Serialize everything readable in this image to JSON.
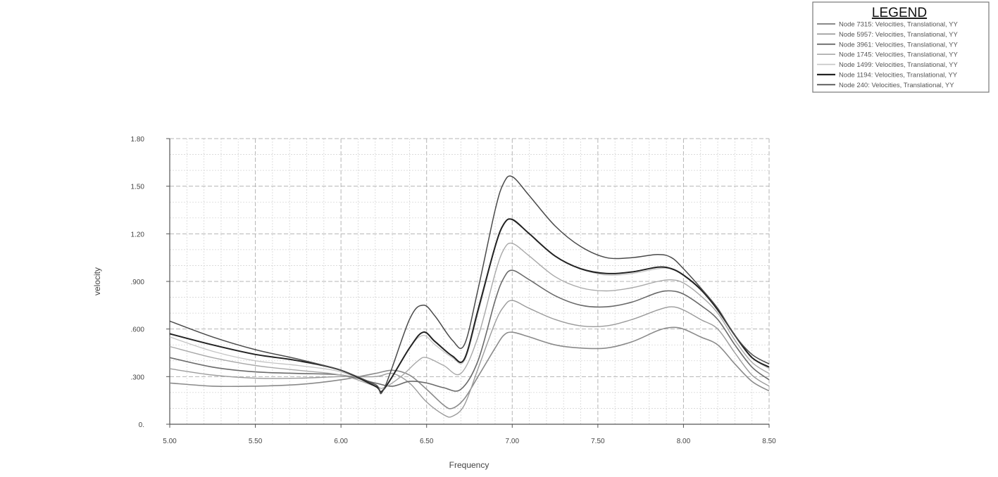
{
  "chart_data": {
    "type": "line",
    "xlabel": "Frequency",
    "ylabel": "velocity",
    "xlim": [
      5.0,
      8.5
    ],
    "ylim": [
      0,
      1.8
    ],
    "x_ticks": [
      5.0,
      5.5,
      6.0,
      6.5,
      7.0,
      7.5,
      8.0,
      8.5
    ],
    "x_tick_labels": [
      "5.00",
      "5.50",
      "6.00",
      "6.50",
      "7.00",
      "7.50",
      "8.00",
      "8.50"
    ],
    "y_ticks": [
      0,
      0.3,
      0.6,
      0.9,
      1.2,
      1.5,
      1.8
    ],
    "y_tick_labels": [
      "0.",
      ".300",
      ".600",
      ".900",
      "1.20",
      "1.50",
      "1.80"
    ],
    "grid": true,
    "legend": {
      "title": "LEGEND",
      "position": "top-right"
    },
    "series": [
      {
        "name": "Node 7315: Velocities, Translational, YY",
        "color": "#8a8a8a",
        "width": 1.6,
        "points": [
          [
            5.0,
            0.26
          ],
          [
            5.25,
            0.24
          ],
          [
            5.5,
            0.24
          ],
          [
            5.75,
            0.25
          ],
          [
            6.0,
            0.28
          ],
          [
            6.2,
            0.32
          ],
          [
            6.3,
            0.34
          ],
          [
            6.4,
            0.31
          ],
          [
            6.5,
            0.22
          ],
          [
            6.6,
            0.12
          ],
          [
            6.65,
            0.1
          ],
          [
            6.72,
            0.16
          ],
          [
            6.8,
            0.3
          ],
          [
            6.9,
            0.48
          ],
          [
            6.95,
            0.56
          ],
          [
            7.0,
            0.58
          ],
          [
            7.1,
            0.55
          ],
          [
            7.25,
            0.5
          ],
          [
            7.4,
            0.48
          ],
          [
            7.55,
            0.48
          ],
          [
            7.7,
            0.52
          ],
          [
            7.85,
            0.59
          ],
          [
            7.93,
            0.61
          ],
          [
            8.0,
            0.6
          ],
          [
            8.1,
            0.55
          ],
          [
            8.2,
            0.5
          ],
          [
            8.3,
            0.38
          ],
          [
            8.4,
            0.27
          ],
          [
            8.5,
            0.21
          ]
        ]
      },
      {
        "name": "Node 5957: Velocities, Translational, YY",
        "color": "#9a9a9a",
        "width": 1.4,
        "points": [
          [
            5.0,
            0.35
          ],
          [
            5.25,
            0.31
          ],
          [
            5.5,
            0.29
          ],
          [
            5.75,
            0.29
          ],
          [
            6.0,
            0.3
          ],
          [
            6.2,
            0.3
          ],
          [
            6.3,
            0.32
          ],
          [
            6.4,
            0.26
          ],
          [
            6.5,
            0.14
          ],
          [
            6.6,
            0.06
          ],
          [
            6.65,
            0.05
          ],
          [
            6.72,
            0.12
          ],
          [
            6.8,
            0.35
          ],
          [
            6.9,
            0.64
          ],
          [
            6.95,
            0.74
          ],
          [
            7.0,
            0.78
          ],
          [
            7.1,
            0.73
          ],
          [
            7.25,
            0.66
          ],
          [
            7.4,
            0.62
          ],
          [
            7.55,
            0.62
          ],
          [
            7.7,
            0.66
          ],
          [
            7.85,
            0.72
          ],
          [
            7.93,
            0.74
          ],
          [
            8.0,
            0.72
          ],
          [
            8.1,
            0.66
          ],
          [
            8.2,
            0.6
          ],
          [
            8.3,
            0.45
          ],
          [
            8.4,
            0.31
          ],
          [
            8.5,
            0.24
          ]
        ]
      },
      {
        "name": "Node 3961: Velocities, Translational, YY",
        "color": "#6a6a6a",
        "width": 1.6,
        "points": [
          [
            5.0,
            0.42
          ],
          [
            5.25,
            0.36
          ],
          [
            5.5,
            0.33
          ],
          [
            5.75,
            0.32
          ],
          [
            6.0,
            0.31
          ],
          [
            6.2,
            0.26
          ],
          [
            6.3,
            0.24
          ],
          [
            6.4,
            0.27
          ],
          [
            6.5,
            0.26
          ],
          [
            6.6,
            0.23
          ],
          [
            6.7,
            0.22
          ],
          [
            6.8,
            0.4
          ],
          [
            6.9,
            0.78
          ],
          [
            6.95,
            0.92
          ],
          [
            7.0,
            0.97
          ],
          [
            7.1,
            0.91
          ],
          [
            7.25,
            0.81
          ],
          [
            7.4,
            0.75
          ],
          [
            7.55,
            0.74
          ],
          [
            7.7,
            0.77
          ],
          [
            7.85,
            0.83
          ],
          [
            7.93,
            0.84
          ],
          [
            8.0,
            0.82
          ],
          [
            8.1,
            0.75
          ],
          [
            8.2,
            0.66
          ],
          [
            8.3,
            0.5
          ],
          [
            8.4,
            0.36
          ],
          [
            8.5,
            0.28
          ]
        ]
      },
      {
        "name": "Node 1745: Velocities, Translational, YY",
        "color": "#a8a8a8",
        "width": 1.4,
        "points": [
          [
            5.0,
            0.49
          ],
          [
            5.25,
            0.42
          ],
          [
            5.5,
            0.37
          ],
          [
            5.75,
            0.34
          ],
          [
            6.0,
            0.31
          ],
          [
            6.2,
            0.24
          ],
          [
            6.25,
            0.23
          ],
          [
            6.35,
            0.3
          ],
          [
            6.45,
            0.4
          ],
          [
            6.5,
            0.42
          ],
          [
            6.6,
            0.37
          ],
          [
            6.7,
            0.32
          ],
          [
            6.8,
            0.55
          ],
          [
            6.9,
            0.95
          ],
          [
            6.95,
            1.1
          ],
          [
            7.0,
            1.14
          ],
          [
            7.1,
            1.06
          ],
          [
            7.25,
            0.93
          ],
          [
            7.4,
            0.86
          ],
          [
            7.55,
            0.84
          ],
          [
            7.7,
            0.86
          ],
          [
            7.85,
            0.9
          ],
          [
            7.93,
            0.91
          ],
          [
            8.0,
            0.89
          ],
          [
            8.1,
            0.81
          ],
          [
            8.2,
            0.7
          ],
          [
            8.3,
            0.53
          ],
          [
            8.4,
            0.39
          ],
          [
            8.5,
            0.32
          ]
        ]
      },
      {
        "name": "Node 1499: Velocities, Translational, YY",
        "color": "#c4c4c4",
        "width": 1.3,
        "points": [
          [
            5.0,
            0.55
          ],
          [
            5.25,
            0.46
          ],
          [
            5.5,
            0.4
          ],
          [
            5.75,
            0.37
          ],
          [
            6.0,
            0.33
          ],
          [
            6.2,
            0.24
          ],
          [
            6.25,
            0.22
          ],
          [
            6.4,
            0.48
          ],
          [
            6.48,
            0.56
          ],
          [
            6.55,
            0.5
          ],
          [
            6.65,
            0.42
          ],
          [
            6.72,
            0.4
          ],
          [
            6.8,
            0.7
          ],
          [
            6.9,
            1.12
          ],
          [
            6.95,
            1.26
          ],
          [
            7.0,
            1.29
          ],
          [
            7.1,
            1.2
          ],
          [
            7.25,
            1.06
          ],
          [
            7.4,
            0.98
          ],
          [
            7.55,
            0.94
          ],
          [
            7.7,
            0.95
          ],
          [
            7.85,
            0.98
          ],
          [
            7.93,
            0.98
          ],
          [
            8.0,
            0.94
          ],
          [
            8.1,
            0.85
          ],
          [
            8.2,
            0.72
          ],
          [
            8.3,
            0.56
          ],
          [
            8.4,
            0.42
          ],
          [
            8.5,
            0.35
          ]
        ]
      },
      {
        "name": "Node 1194: Velocities, Translational, YY",
        "color": "#222222",
        "width": 2.0,
        "points": [
          [
            5.0,
            0.57
          ],
          [
            5.25,
            0.5
          ],
          [
            5.5,
            0.44
          ],
          [
            5.75,
            0.4
          ],
          [
            6.0,
            0.34
          ],
          [
            6.2,
            0.24
          ],
          [
            6.25,
            0.22
          ],
          [
            6.4,
            0.48
          ],
          [
            6.48,
            0.58
          ],
          [
            6.55,
            0.52
          ],
          [
            6.65,
            0.43
          ],
          [
            6.72,
            0.41
          ],
          [
            6.8,
            0.72
          ],
          [
            6.9,
            1.12
          ],
          [
            6.95,
            1.26
          ],
          [
            7.0,
            1.29
          ],
          [
            7.1,
            1.2
          ],
          [
            7.25,
            1.06
          ],
          [
            7.4,
            0.98
          ],
          [
            7.55,
            0.95
          ],
          [
            7.7,
            0.96
          ],
          [
            7.85,
            0.99
          ],
          [
            7.93,
            0.98
          ],
          [
            8.0,
            0.94
          ],
          [
            8.1,
            0.85
          ],
          [
            8.2,
            0.72
          ],
          [
            8.3,
            0.56
          ],
          [
            8.4,
            0.42
          ],
          [
            8.5,
            0.36
          ]
        ]
      },
      {
        "name": "Node 240: Velocities, Translational, YY",
        "color": "#4a4a4a",
        "width": 1.5,
        "points": [
          [
            5.0,
            0.65
          ],
          [
            5.25,
            0.55
          ],
          [
            5.5,
            0.47
          ],
          [
            5.75,
            0.41
          ],
          [
            6.0,
            0.34
          ],
          [
            6.2,
            0.25
          ],
          [
            6.25,
            0.22
          ],
          [
            6.4,
            0.66
          ],
          [
            6.48,
            0.75
          ],
          [
            6.55,
            0.68
          ],
          [
            6.65,
            0.53
          ],
          [
            6.72,
            0.5
          ],
          [
            6.8,
            0.85
          ],
          [
            6.9,
            1.35
          ],
          [
            6.95,
            1.52
          ],
          [
            7.0,
            1.56
          ],
          [
            7.1,
            1.44
          ],
          [
            7.25,
            1.25
          ],
          [
            7.4,
            1.12
          ],
          [
            7.55,
            1.05
          ],
          [
            7.7,
            1.05
          ],
          [
            7.85,
            1.07
          ],
          [
            7.93,
            1.05
          ],
          [
            8.0,
            0.98
          ],
          [
            8.1,
            0.86
          ],
          [
            8.2,
            0.73
          ],
          [
            8.3,
            0.56
          ],
          [
            8.4,
            0.44
          ],
          [
            8.5,
            0.38
          ]
        ]
      }
    ]
  }
}
